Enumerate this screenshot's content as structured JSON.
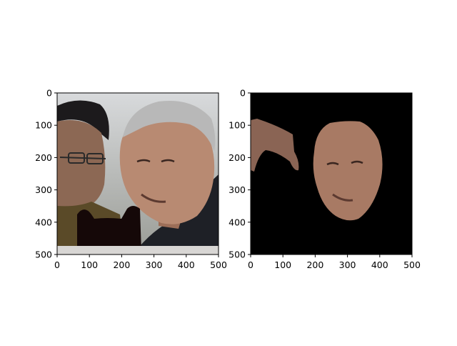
{
  "figure": {
    "background": "#ffffff"
  },
  "chart_data": [
    {
      "type": "image",
      "title": "",
      "xlabel": "",
      "ylabel": "",
      "xlim": [
        0,
        500
      ],
      "ylim": [
        500,
        0
      ],
      "xticks": [
        "0",
        "100",
        "200",
        "300",
        "400",
        "500"
      ],
      "yticks": [
        "0",
        "100",
        "200",
        "300",
        "400",
        "500"
      ],
      "content": "photo of two men with a dark occluding mask near lower left",
      "colors": {
        "sky": "#c9ccd0",
        "skin": "#b88a72",
        "hair": "#b8b8b8",
        "jacket": "#1e2026",
        "mask": "#150808"
      }
    },
    {
      "type": "image",
      "title": "",
      "xlabel": "",
      "ylabel": "",
      "xlim": [
        0,
        500
      ],
      "ylim": [
        500,
        0
      ],
      "xticks": [
        "0",
        "100",
        "200",
        "300",
        "400",
        "500"
      ],
      "yticks": [
        "0",
        "100",
        "200",
        "300",
        "400",
        "500"
      ],
      "content": "segmented face region on black background",
      "colors": {
        "background": "#000000",
        "skin": "#a87a64"
      }
    }
  ]
}
